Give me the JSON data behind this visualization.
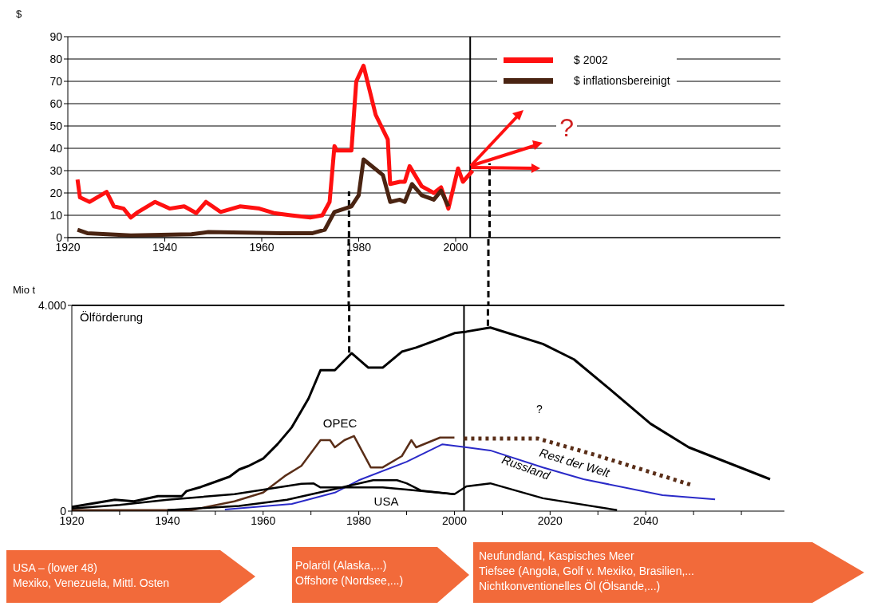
{
  "chart_data": [
    {
      "type": "line",
      "ylabel": "$",
      "xlim": [
        1920,
        2067
      ],
      "xticks": [
        1920,
        1940,
        1960,
        1980,
        2000
      ],
      "ylim": [
        0,
        90
      ],
      "yticks": [
        0,
        10,
        20,
        30,
        40,
        50,
        60,
        70,
        80,
        90
      ],
      "grid": "y",
      "legend": "top right",
      "ref_lines": [
        {
          "axis": "x",
          "value": 2003,
          "color": "#000000"
        },
        {
          "axis": "x",
          "value": 1978,
          "color": "#000000",
          "line_style": "dashed"
        },
        {
          "axis": "x",
          "value": 2007,
          "color": "#000000",
          "line_style": "dashed"
        }
      ],
      "annotations": [
        {
          "text": "?",
          "x": 2003,
          "y": 30
        }
      ],
      "series": [
        {
          "name": "$ 2002",
          "color": "#ff1010",
          "x": [
            1922,
            1922.5,
            1924.5,
            1928,
            1929.5,
            1931.5,
            1933,
            1934.5,
            1938,
            1941,
            1944,
            1946.5,
            1948.5,
            1951.5,
            1955.5,
            1959.5,
            1962.5,
            1966,
            1970,
            1972.5,
            1974,
            1975,
            1975.5,
            1978.5,
            1979.5,
            1981,
            1983.5,
            1986,
            1986.5,
            1988.5,
            1989.5,
            1990.5,
            1993,
            1995.5,
            1997,
            1998.5,
            2000.5,
            2001.5,
            2003.5
          ],
          "values": [
            26,
            18,
            16,
            20.5,
            14,
            13,
            9,
            11.5,
            16,
            13,
            14,
            11,
            16,
            11.5,
            14,
            13,
            11,
            10,
            9,
            10,
            16,
            41,
            39,
            39,
            70,
            77,
            55,
            44,
            24,
            25,
            25,
            32,
            23,
            20,
            22.5,
            13,
            31,
            25,
            30
          ]
        },
        {
          "name": "$ inflationsbereinigt",
          "color": "#4a2412",
          "x": [
            1922,
            1924,
            1933,
            1945.5,
            1949,
            1964,
            1970.5,
            1973,
            1975,
            1978.5,
            1980,
            1981,
            1985,
            1986.5,
            1988.5,
            1989.5,
            1991,
            1993,
            1995.5,
            1997,
            1998.5
          ],
          "values": [
            3.5,
            2,
            1,
            1.5,
            2.5,
            2,
            2,
            3.5,
            11.5,
            14,
            19,
            35,
            28,
            16,
            17,
            16,
            24,
            19,
            17,
            21,
            14
          ]
        }
      ]
    },
    {
      "type": "line",
      "title": "Ölförderung",
      "ylabel": "Mio t",
      "xlim": [
        1920,
        2069
      ],
      "xticks": [
        1920,
        {
          "value": 1930,
          "label": null
        },
        1940,
        {
          "value": 1950,
          "label": null
        },
        1960,
        {
          "value": 1970,
          "label": null
        },
        1980,
        {
          "value": 1990,
          "label": null
        },
        2000,
        {
          "value": 2010,
          "label": null
        },
        2020,
        {
          "value": 2030,
          "label": null
        },
        2040,
        {
          "value": 2050,
          "label": null
        },
        {
          "value": 2060,
          "label": null
        }
      ],
      "ylim": [
        0,
        4000
      ],
      "yticks": [
        0,
        {
          "value": 4000,
          "label": "4.000"
        }
      ],
      "ref_lines": [
        {
          "axis": "x",
          "value": 2002,
          "color": "#000000"
        },
        {
          "axis": "y",
          "value": 4000,
          "color": "#000000"
        },
        {
          "axis": "x",
          "value": 1978,
          "color": "#000000",
          "line_style": "dashed"
        },
        {
          "axis": "x",
          "value": 2007,
          "color": "#000000",
          "line_style": "dashed"
        }
      ],
      "annotations": [
        "?",
        "USA – (lower 48)\nMexiko, Venezuela, Mittl. Osten",
        "Polaröl (Alaska,...)\nOffshore (Nordsee,...)",
        "Neufundland, Kaspisches Meer\nTiefsee (Angola, Golf v. Mexiko, Brasilien,...\nNichtkonventionelles Öl (Ölsande,...)"
      ],
      "series": [
        {
          "color": "#000000",
          "x": [
            1920,
            1929,
            1933,
            1938,
            1943,
            1944,
            1947,
            1950,
            1953,
            1955,
            1957,
            1960,
            1963,
            1966,
            1969.5,
            1972,
            1975,
            1978.5,
            1982,
            1985,
            1989,
            1992,
            1997,
            2000,
            2002.5,
            2007.5,
            2018.5,
            2025,
            2032.5,
            2041,
            2049,
            2057.5,
            2066
          ],
          "values": [
            80,
            220,
            190,
            290,
            290,
            390,
            470,
            570,
            670,
            810,
            880,
            1020,
            1300,
            1630,
            2190,
            2740,
            2740,
            3070,
            2790,
            2790,
            3100,
            3180,
            3350,
            3460,
            3490,
            3570,
            3250,
            2950,
            2370,
            1700,
            1240,
            930,
            620
          ]
        },
        {
          "name": "OPEC",
          "color": "#5a2e18",
          "x": [
            1920,
            1945,
            1954,
            1960,
            1964.5,
            1968,
            1972,
            1974,
            1975,
            1977,
            1979,
            1982.5,
            1985,
            1989,
            1991,
            1992,
            1997,
            2000
          ],
          "values": [
            20,
            20,
            190,
            360,
            680,
            880,
            1380,
            1380,
            1240,
            1380,
            1460,
            850,
            850,
            1070,
            1380,
            1240,
            1430,
            1430
          ]
        },
        {
          "color": "#5a2e18",
          "line_style": "dotted",
          "x": [
            2002,
            2017.5,
            2029.5,
            2049.5
          ],
          "values": [
            1410,
            1410,
            1090,
            510
          ]
        },
        {
          "name": "Rest der Welt",
          "color": "#2a2ac8",
          "x": [
            1952,
            1966,
            1975,
            1980,
            1990,
            1997.5,
            2002.5,
            2007.5,
            2018.5,
            2027,
            2043.5,
            2054.5
          ],
          "values": [
            30,
            140,
            360,
            600,
            960,
            1300,
            1240,
            1180,
            850,
            620,
            310,
            230
          ]
        },
        {
          "name": "USA",
          "color": "#000000",
          "x": [
            1920,
            1930,
            1940,
            1954,
            1968,
            1970.5,
            1972,
            1980,
            1985,
            1990,
            2000
          ],
          "values": [
            50,
            120,
            220,
            330,
            530,
            540,
            460,
            460,
            460,
            420,
            330
          ]
        },
        {
          "name": "Russland",
          "color": "#000000",
          "x": [
            1940,
            1955,
            1965,
            1975,
            1983,
            1988,
            1990,
            1993,
            2000,
            2002.5,
            2007.5,
            2018.5,
            2034
          ],
          "values": [
            20,
            100,
            220,
            430,
            600,
            600,
            540,
            400,
            330,
            480,
            540,
            250,
            20
          ]
        }
      ]
    }
  ]
}
